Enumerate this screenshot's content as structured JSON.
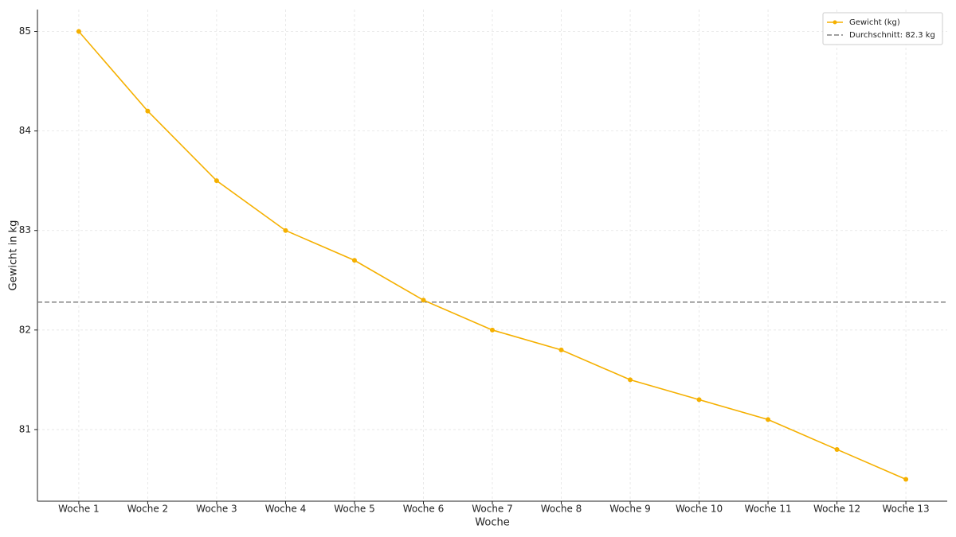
{
  "chart_data": {
    "type": "line",
    "categories": [
      "Woche 1",
      "Woche 2",
      "Woche 3",
      "Woche 4",
      "Woche 5",
      "Woche 6",
      "Woche 7",
      "Woche 8",
      "Woche 9",
      "Woche 10",
      "Woche 11",
      "Woche 12",
      "Woche 13"
    ],
    "series": [
      {
        "name": "Gewicht (kg)",
        "color": "#f5b000",
        "values": [
          85,
          84.2,
          83.5,
          83.0,
          82.7,
          82.3,
          82.0,
          81.8,
          81.5,
          81.3,
          81.1,
          80.8,
          80.5
        ]
      }
    ],
    "reference_line": {
      "name": "Durchschnitt: 82.3 kg",
      "value": 82.28,
      "color": "#808080",
      "style": "dashed"
    },
    "xlabel": "Woche",
    "ylabel": "Gewicht in kg",
    "ylim": [
      80.28,
      85.22
    ],
    "yticks": [
      81,
      82,
      83,
      84,
      85
    ],
    "grid": true,
    "legend": "upper right"
  }
}
